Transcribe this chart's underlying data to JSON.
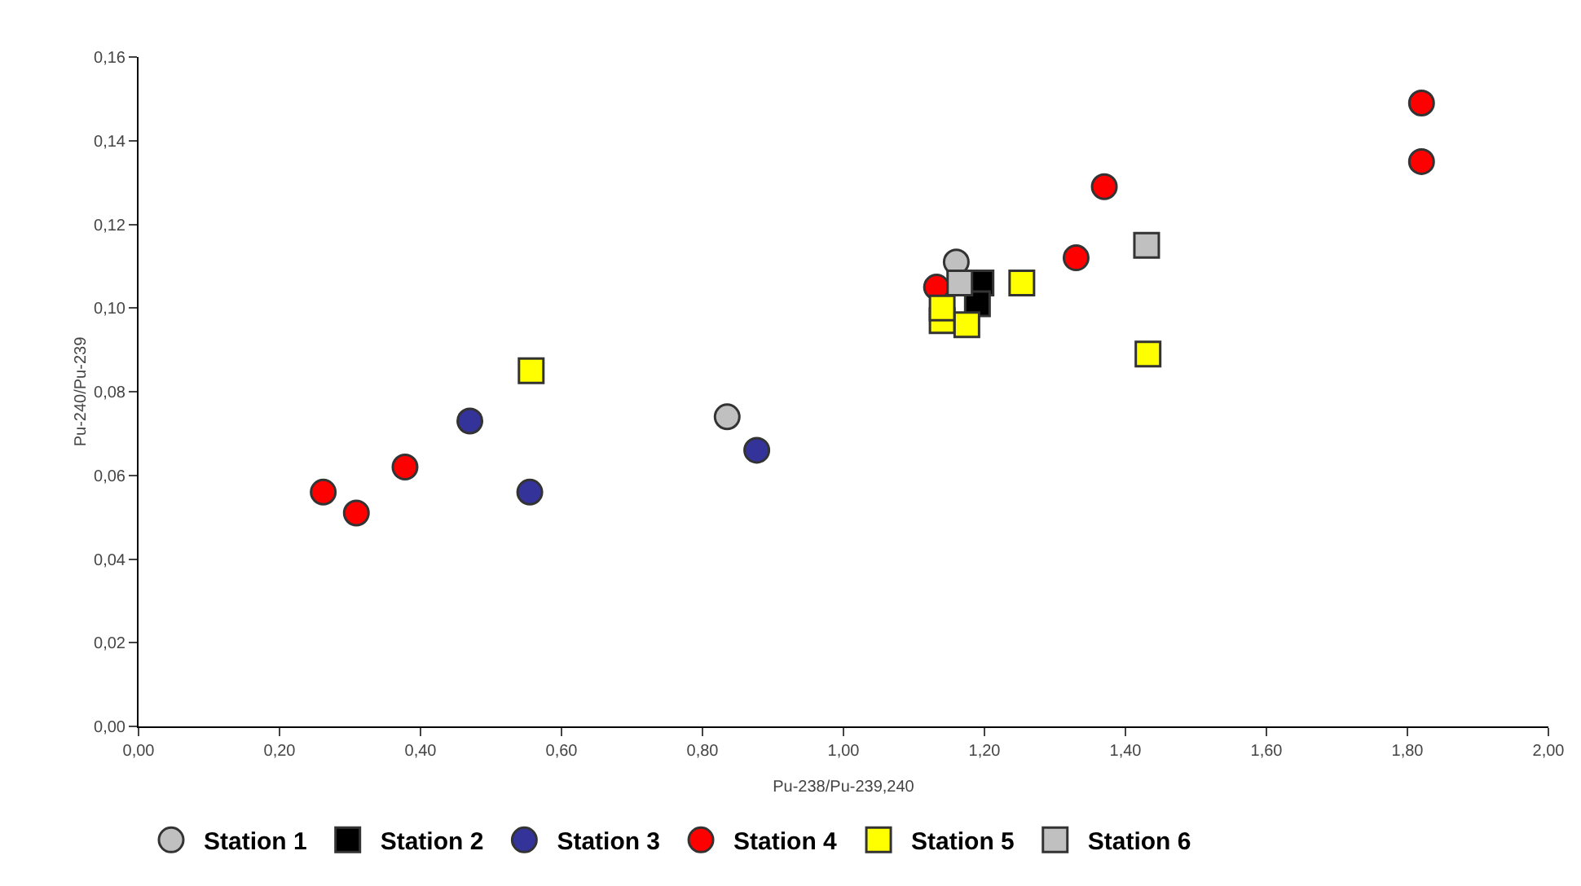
{
  "chart_data": {
    "type": "scatter",
    "xlabel": "Pu-238/Pu-239,240",
    "ylabel": "Pu-240/Pu-239",
    "xlim": [
      0,
      2
    ],
    "ylim": [
      0,
      0.16
    ],
    "xticks": [
      {
        "value": 0,
        "label": "0,00"
      },
      {
        "value": 0.2,
        "label": "0,20"
      },
      {
        "value": 0.4,
        "label": "0,40"
      },
      {
        "value": 0.6,
        "label": "0,60"
      },
      {
        "value": 0.8,
        "label": "0,80"
      },
      {
        "value": 1,
        "label": "1,00"
      },
      {
        "value": 1.2,
        "label": "1,20"
      },
      {
        "value": 1.4,
        "label": "1,40"
      },
      {
        "value": 1.6,
        "label": "1,60"
      },
      {
        "value": 1.8,
        "label": "1,80"
      },
      {
        "value": 2,
        "label": "2,00"
      }
    ],
    "yticks": [
      {
        "value": 0,
        "label": "0,00"
      },
      {
        "value": 0.02,
        "label": "0,02"
      },
      {
        "value": 0.04,
        "label": "0,04"
      },
      {
        "value": 0.06,
        "label": "0,06"
      },
      {
        "value": 0.08,
        "label": "0,08"
      },
      {
        "value": 0.1,
        "label": "0,10"
      },
      {
        "value": 0.12,
        "label": "0,12"
      },
      {
        "value": 0.14,
        "label": "0,14"
      },
      {
        "value": 0.16,
        "label": "0,16"
      }
    ],
    "grid": false,
    "legend": "bottom",
    "series": [
      {
        "name": "Station 1",
        "color": "#c0c0c0",
        "marker": "circle",
        "x": [
          0.835,
          1.16
        ],
        "values": [
          0.074,
          0.111
        ]
      },
      {
        "name": "Station 2",
        "color": "#000000",
        "marker": "square",
        "x": [
          1.195,
          1.19
        ],
        "values": [
          0.106,
          0.101
        ]
      },
      {
        "name": "Station 3",
        "color": "#333399",
        "marker": "circle",
        "x": [
          0.47,
          0.555,
          0.877
        ],
        "values": [
          0.073,
          0.056,
          0.066
        ]
      },
      {
        "name": "Station 4",
        "color": "#ff0000",
        "marker": "circle",
        "x": [
          0.262,
          0.309,
          0.378,
          1.132,
          1.33,
          1.37,
          1.82,
          1.82
        ],
        "values": [
          0.056,
          0.051,
          0.062,
          0.105,
          0.112,
          0.129,
          0.149,
          0.135
        ]
      },
      {
        "name": "Station 5",
        "color": "#ffff00",
        "marker": "square",
        "x": [
          0.557,
          1.14,
          1.14,
          1.175,
          1.253,
          1.432
        ],
        "values": [
          0.085,
          0.097,
          0.1,
          0.096,
          0.106,
          0.089
        ]
      },
      {
        "name": "Station 6",
        "color": "#c0c0c0",
        "marker": "square",
        "x": [
          1.165,
          1.43
        ],
        "values": [
          0.106,
          0.115
        ]
      }
    ]
  }
}
